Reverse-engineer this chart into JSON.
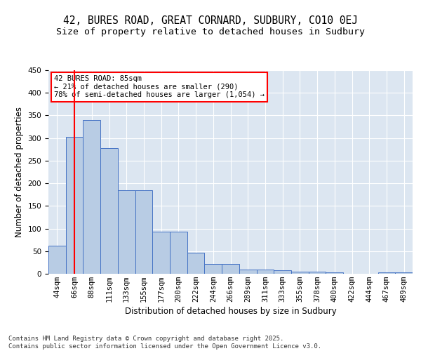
{
  "title1": "42, BURES ROAD, GREAT CORNARD, SUDBURY, CO10 0EJ",
  "title2": "Size of property relative to detached houses in Sudbury",
  "xlabel": "Distribution of detached houses by size in Sudbury",
  "ylabel": "Number of detached properties",
  "bar_labels": [
    "44sqm",
    "66sqm",
    "88sqm",
    "111sqm",
    "133sqm",
    "155sqm",
    "177sqm",
    "200sqm",
    "222sqm",
    "244sqm",
    "266sqm",
    "289sqm",
    "311sqm",
    "333sqm",
    "355sqm",
    "378sqm",
    "400sqm",
    "422sqm",
    "444sqm",
    "467sqm",
    "489sqm"
  ],
  "bar_values": [
    62,
    303,
    340,
    278,
    185,
    185,
    93,
    93,
    46,
    22,
    22,
    10,
    10,
    7,
    5,
    5,
    3,
    0,
    0,
    3,
    3
  ],
  "bar_color": "#b8cce4",
  "bar_edge_color": "#4472c4",
  "background_color": "#dce6f1",
  "grid_color": "#ffffff",
  "vline_x": 1.0,
  "vline_color": "#ff0000",
  "annotation_line1": "42 BURES ROAD: 85sqm",
  "annotation_line2": "← 21% of detached houses are smaller (290)",
  "annotation_line3": "78% of semi-detached houses are larger (1,054) →",
  "annotation_box_color": "#ffffff",
  "annotation_box_edge": "#ff0000",
  "footer_text": "Contains HM Land Registry data © Crown copyright and database right 2025.\nContains public sector information licensed under the Open Government Licence v3.0.",
  "ylim": [
    0,
    450
  ],
  "yticks": [
    0,
    50,
    100,
    150,
    200,
    250,
    300,
    350,
    400,
    450
  ],
  "title_fontsize": 10.5,
  "subtitle_fontsize": 9.5,
  "axis_fontsize": 8.5,
  "tick_fontsize": 7.5,
  "annot_fontsize": 7.5,
  "footer_fontsize": 6.5
}
